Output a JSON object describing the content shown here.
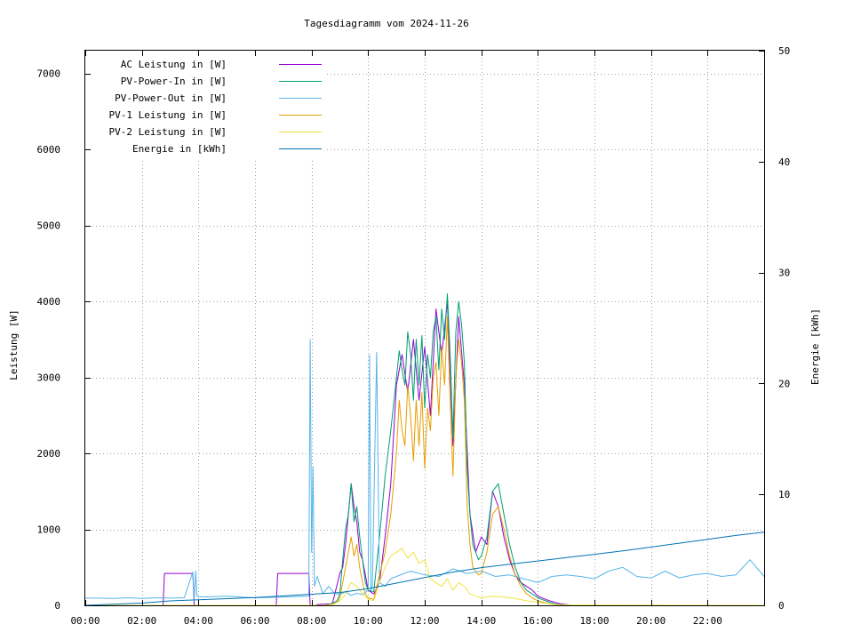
{
  "chart_data": {
    "type": "line",
    "title": "Tagesdiagramm vom 2024-11-26",
    "ylabel": "Leistung [W]",
    "y2label": "Energie [kWh]",
    "xlabel": "",
    "x_tick_labels": [
      "00:00",
      "02:00",
      "04:00",
      "06:00",
      "08:00",
      "10:00",
      "12:00",
      "14:00",
      "16:00",
      "18:00",
      "20:00",
      "22:00"
    ],
    "y_tick_labels": [
      "0",
      "1000",
      "2000",
      "3000",
      "4000",
      "5000",
      "6000",
      "7000"
    ],
    "y2_tick_labels": [
      "0",
      "10",
      "20",
      "30",
      "40",
      "50"
    ],
    "xlim_hours": [
      0,
      24
    ],
    "ylim": [
      0,
      7300
    ],
    "y2lim": [
      0,
      50
    ],
    "grid": true,
    "legend_position": "top-left",
    "series": [
      {
        "name": "AC Leistung in [W]",
        "color": "#9400d3",
        "axis": "left",
        "x": [
          0,
          2.75,
          2.8,
          3.8,
          3.85,
          6.75,
          6.8,
          7.9,
          7.95,
          8.15,
          8.2,
          8.7,
          8.75,
          9.0,
          9.1,
          9.2,
          9.3,
          9.4,
          9.5,
          9.6,
          9.7,
          9.8,
          9.9,
          10.0,
          10.2,
          10.4,
          10.6,
          10.8,
          11.0,
          11.2,
          11.4,
          11.6,
          11.8,
          12.0,
          12.2,
          12.4,
          12.6,
          12.8,
          13.0,
          13.2,
          13.4,
          13.6,
          13.8,
          14.0,
          14.2,
          14.4,
          14.6,
          14.8,
          15.0,
          15.2,
          15.4,
          15.6,
          15.8,
          16.0,
          16.2,
          16.4,
          16.6,
          16.8,
          17.0,
          17.2,
          24
        ],
        "y": [
          0,
          0,
          420,
          420,
          0,
          0,
          420,
          420,
          0,
          0,
          10,
          20,
          40,
          420,
          500,
          800,
          1200,
          1600,
          1300,
          1100,
          700,
          600,
          400,
          200,
          150,
          300,
          900,
          1600,
          2900,
          3300,
          2800,
          3500,
          2700,
          3400,
          2500,
          3900,
          3300,
          4000,
          2100,
          3800,
          2900,
          1200,
          700,
          900,
          800,
          1500,
          1300,
          900,
          600,
          400,
          300,
          250,
          200,
          120,
          90,
          60,
          40,
          20,
          10,
          0,
          0
        ]
      },
      {
        "name": "PV-Power-In in [W]",
        "color": "#009e73",
        "axis": "left",
        "x": [
          0,
          8.5,
          8.7,
          8.9,
          9.0,
          9.1,
          9.2,
          9.3,
          9.4,
          9.5,
          9.6,
          9.7,
          9.8,
          9.9,
          10.0,
          10.2,
          10.4,
          10.5,
          10.6,
          10.8,
          11.0,
          11.1,
          11.2,
          11.3,
          11.4,
          11.5,
          11.6,
          11.7,
          11.8,
          11.9,
          12.0,
          12.1,
          12.2,
          12.3,
          12.4,
          12.5,
          12.6,
          12.7,
          12.8,
          12.9,
          13.0,
          13.1,
          13.2,
          13.3,
          13.4,
          13.5,
          13.6,
          13.7,
          13.8,
          13.9,
          14.0,
          14.2,
          14.4,
          14.6,
          14.8,
          15.0,
          15.2,
          15.4,
          15.6,
          15.8,
          16.0,
          16.2,
          16.4,
          16.6,
          16.8,
          17.0,
          17.2,
          24
        ],
        "y": [
          0,
          0,
          20,
          60,
          150,
          600,
          1000,
          1200,
          1600,
          1100,
          1300,
          900,
          600,
          300,
          200,
          180,
          900,
          1300,
          1700,
          2300,
          3000,
          3350,
          3100,
          2900,
          3600,
          3300,
          2700,
          3500,
          2900,
          3550,
          2600,
          3300,
          3000,
          3600,
          3800,
          3100,
          3900,
          3500,
          4100,
          3300,
          2200,
          3600,
          4000,
          3700,
          3200,
          1800,
          1200,
          800,
          700,
          600,
          650,
          900,
          1500,
          1600,
          1200,
          800,
          500,
          300,
          200,
          150,
          100,
          70,
          40,
          20,
          10,
          5,
          0,
          0
        ]
      },
      {
        "name": "PV-Power-Out in [W]",
        "color": "#56b4e9",
        "axis": "left",
        "x": [
          0,
          0.5,
          1.0,
          1.5,
          2.0,
          2.5,
          3.0,
          3.5,
          3.8,
          3.85,
          3.9,
          3.95,
          4.0,
          5.0,
          6.0,
          7.0,
          7.9,
          7.95,
          8.0,
          8.05,
          8.1,
          8.2,
          8.4,
          8.6,
          8.8,
          9.0,
          9.2,
          9.4,
          9.6,
          9.8,
          10.0,
          10.05,
          10.1,
          10.15,
          10.3,
          10.4,
          10.6,
          10.8,
          11.0,
          11.5,
          12.0,
          12.5,
          13.0,
          13.5,
          14.0,
          14.5,
          15.0,
          15.5,
          16.0,
          16.5,
          17.0,
          17.5,
          18.0,
          18.5,
          19.0,
          19.5,
          20.0,
          20.5,
          21.0,
          21.5,
          22.0,
          22.5,
          23.0,
          23.5,
          24
        ],
        "y": [
          95,
          95,
          90,
          100,
          90,
          100,
          95,
          100,
          440,
          60,
          450,
          120,
          110,
          120,
          100,
          110,
          120,
          3500,
          700,
          1820,
          250,
          380,
          150,
          250,
          160,
          140,
          180,
          130,
          160,
          140,
          200,
          3300,
          200,
          260,
          3330,
          300,
          250,
          350,
          380,
          450,
          400,
          380,
          480,
          420,
          450,
          380,
          400,
          350,
          300,
          380,
          400,
          380,
          350,
          450,
          500,
          380,
          360,
          450,
          360,
          400,
          420,
          380,
          400,
          600,
          380
        ]
      },
      {
        "name": "PV-1 Leistung in [W]",
        "color": "#e69f00",
        "axis": "left",
        "x": [
          0,
          8.5,
          8.7,
          8.9,
          9.0,
          9.1,
          9.2,
          9.3,
          9.4,
          9.5,
          9.6,
          9.7,
          9.8,
          9.9,
          10.0,
          10.2,
          10.4,
          10.6,
          10.8,
          11.0,
          11.1,
          11.2,
          11.3,
          11.4,
          11.5,
          11.6,
          11.7,
          11.8,
          11.9,
          12.0,
          12.1,
          12.2,
          12.3,
          12.4,
          12.5,
          12.6,
          12.7,
          12.8,
          12.9,
          13.0,
          13.1,
          13.2,
          13.3,
          13.4,
          13.5,
          13.6,
          13.7,
          13.8,
          13.9,
          14.0,
          14.2,
          14.4,
          14.6,
          14.8,
          15.0,
          15.2,
          15.4,
          15.6,
          15.8,
          16.0,
          16.2,
          16.4,
          16.6,
          16.8,
          17.0,
          24
        ],
        "y": [
          0,
          0,
          10,
          40,
          100,
          300,
          500,
          700,
          900,
          650,
          800,
          500,
          300,
          150,
          100,
          80,
          400,
          700,
          1200,
          2000,
          2700,
          2300,
          2100,
          2900,
          2500,
          1900,
          2700,
          2100,
          2800,
          1800,
          2600,
          2300,
          3000,
          3200,
          2500,
          3400,
          2900,
          3800,
          2700,
          1700,
          3000,
          3500,
          3200,
          2700,
          1300,
          800,
          500,
          450,
          400,
          420,
          700,
          1200,
          1300,
          1000,
          650,
          400,
          250,
          150,
          100,
          60,
          40,
          20,
          10,
          5,
          0,
          0
        ]
      },
      {
        "name": "PV-2 Leistung in [W]",
        "color": "#f0e442",
        "axis": "left",
        "x": [
          0,
          8.5,
          8.8,
          9.0,
          9.2,
          9.4,
          9.6,
          9.8,
          10.0,
          10.2,
          10.4,
          10.6,
          10.8,
          11.0,
          11.2,
          11.4,
          11.6,
          11.8,
          12.0,
          12.2,
          12.4,
          12.6,
          12.8,
          13.0,
          13.2,
          13.4,
          13.6,
          13.8,
          14.0,
          14.4,
          14.8,
          15.2,
          15.6,
          16.0,
          16.4,
          16.8,
          24
        ],
        "y": [
          0,
          0,
          15,
          60,
          150,
          300,
          250,
          150,
          80,
          60,
          300,
          500,
          650,
          700,
          750,
          620,
          700,
          550,
          600,
          350,
          300,
          250,
          350,
          200,
          300,
          250,
          150,
          120,
          100,
          120,
          110,
          90,
          60,
          40,
          20,
          5,
          0
        ]
      },
      {
        "name": "Energie in [kWh]",
        "color": "#0072b2",
        "axis": "right",
        "x": [
          0,
          1,
          2,
          3,
          4,
          5,
          6,
          7,
          8,
          9,
          10,
          11,
          12,
          13,
          14,
          15,
          16,
          17,
          18,
          19,
          20,
          21,
          22,
          23,
          24
        ],
        "y": [
          0,
          0.1,
          0.2,
          0.4,
          0.5,
          0.6,
          0.7,
          0.85,
          1.0,
          1.15,
          1.5,
          2.0,
          2.5,
          3.0,
          3.4,
          3.7,
          4.0,
          4.3,
          4.6,
          4.9,
          5.25,
          5.6,
          5.95,
          6.3,
          6.6
        ]
      }
    ]
  }
}
